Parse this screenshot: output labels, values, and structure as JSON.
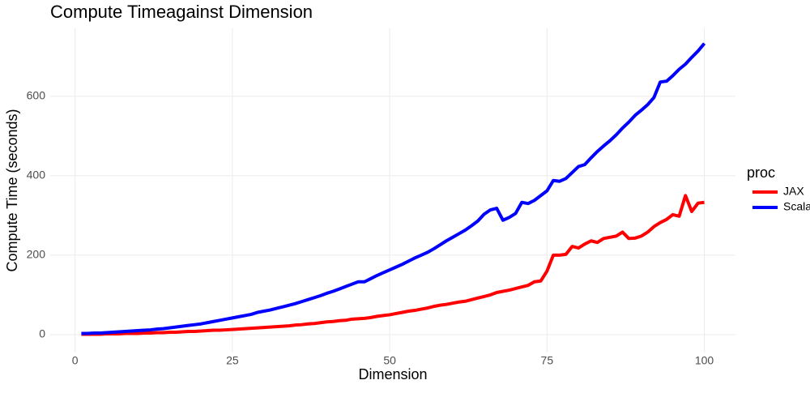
{
  "chart_data": {
    "type": "line",
    "title": "Compute Timeagainst Dimension",
    "x_label": "Dimension",
    "y_label": "Compute Time (seconds)",
    "legend_title": "proc",
    "legend_position": "right",
    "grid": true,
    "x": [
      1,
      2,
      3,
      4,
      5,
      6,
      7,
      8,
      9,
      10,
      11,
      12,
      13,
      14,
      15,
      16,
      17,
      18,
      19,
      20,
      21,
      22,
      23,
      24,
      25,
      26,
      27,
      28,
      29,
      30,
      31,
      32,
      33,
      34,
      35,
      36,
      37,
      38,
      39,
      40,
      41,
      42,
      43,
      44,
      45,
      46,
      47,
      48,
      49,
      50,
      51,
      52,
      53,
      54,
      55,
      56,
      57,
      58,
      59,
      60,
      61,
      62,
      63,
      64,
      65,
      66,
      67,
      68,
      69,
      70,
      71,
      72,
      73,
      74,
      75,
      76,
      77,
      78,
      79,
      80,
      81,
      82,
      83,
      84,
      85,
      86,
      87,
      88,
      89,
      90,
      91,
      92,
      93,
      94,
      95,
      96,
      97,
      98,
      99,
      100
    ],
    "series": [
      {
        "name": "JAX",
        "color": "#ff0000",
        "values": [
          1,
          1,
          1,
          1,
          2,
          2,
          2,
          3,
          3,
          3,
          4,
          4,
          5,
          5,
          6,
          6,
          7,
          8,
          8,
          9,
          10,
          11,
          11,
          12,
          13,
          14,
          15,
          16,
          17,
          18,
          19,
          20,
          21,
          22,
          24,
          25,
          27,
          28,
          30,
          32,
          33,
          35,
          36,
          39,
          40,
          41,
          43,
          46,
          48,
          50,
          53,
          56,
          59,
          61,
          64,
          67,
          71,
          74,
          76,
          79,
          82,
          84,
          88,
          92,
          96,
          100,
          106,
          109,
          112,
          116,
          120,
          124,
          133,
          135,
          160,
          200,
          200,
          202,
          222,
          218,
          228,
          236,
          232,
          242,
          245,
          248,
          258,
          242,
          243,
          248,
          258,
          272,
          282,
          290,
          302,
          298,
          350,
          310,
          331,
          333
        ]
      },
      {
        "name": "Scala",
        "color": "#0000ff",
        "values": [
          3,
          3,
          4,
          4,
          5,
          6,
          7,
          8,
          9,
          10,
          11,
          12,
          14,
          15,
          17,
          19,
          21,
          23,
          25,
          27,
          30,
          33,
          36,
          39,
          42,
          45,
          48,
          51,
          56,
          59,
          62,
          66,
          70,
          74,
          78,
          83,
          88,
          93,
          98,
          104,
          109,
          115,
          121,
          127,
          133,
          133,
          141,
          149,
          156,
          163,
          170,
          177,
          185,
          193,
          200,
          207,
          216,
          226,
          236,
          245,
          254,
          263,
          274,
          286,
          303,
          314,
          318,
          288,
          295,
          305,
          333,
          330,
          338,
          350,
          362,
          388,
          386,
          393,
          408,
          423,
          428,
          445,
          461,
          475,
          488,
          503,
          520,
          535,
          552,
          565,
          579,
          597,
          636,
          638,
          652,
          668,
          681,
          698,
          714,
          733
        ]
      }
    ],
    "xlim": [
      -3.95,
      104.95
    ],
    "xticks": [
      0,
      25,
      50,
      75,
      100
    ],
    "ylim": [
      -45,
      771
    ],
    "yticks": [
      0,
      200,
      400,
      600
    ]
  }
}
